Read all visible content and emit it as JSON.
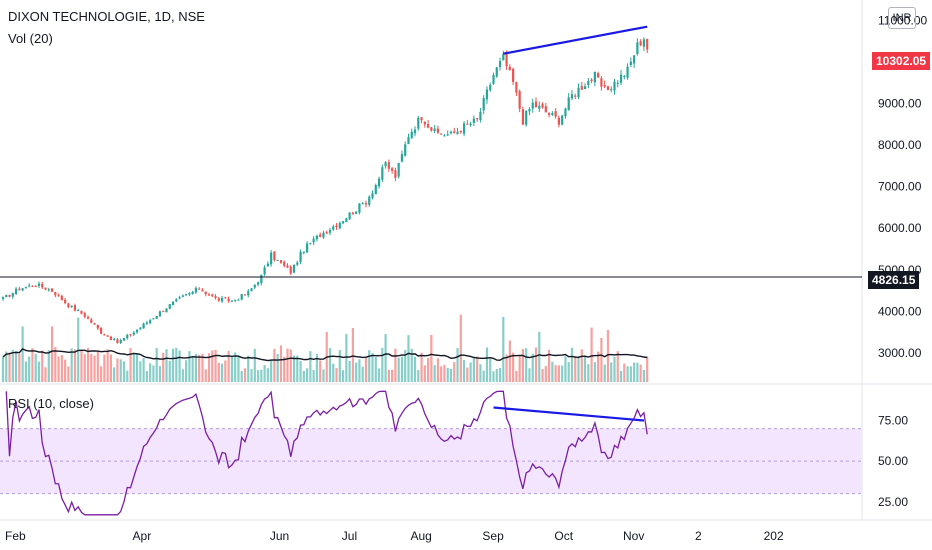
{
  "legend": {
    "title": "DIXON TECHNOLOGIE, 1D, NSE",
    "volume": "Vol (20)",
    "rsi": "RSI (10, close)"
  },
  "currency": "INR",
  "tags": {
    "last_price": "10302.05",
    "level": "4826.15"
  },
  "colors": {
    "up": "#26a69a",
    "down": "#ef5350",
    "trendline": "#1a1ae6",
    "rsi_line": "#7b1fa2",
    "rsi_band": "#f3e5fd"
  },
  "chart_data": [
    {
      "type": "candlestick",
      "name": "price",
      "ylim": [
        2300,
        11300
      ],
      "yticks": [
        3000,
        4000,
        5000,
        6000,
        7000,
        8000,
        9000,
        10000,
        11000
      ],
      "ytick_labels": [
        "3000.00",
        "4000.00",
        "5000.00",
        "6000.00",
        "7000.00",
        "8000.00",
        "9000.00",
        "10000.00",
        "11000.00"
      ],
      "x_tick_labels": [
        "Feb",
        "Apr",
        "Jun",
        "Jul",
        "Aug",
        "Sep",
        "Oct",
        "Nov",
        "2",
        "202"
      ],
      "x_tick_index": [
        0,
        39,
        81,
        103,
        124,
        146,
        168,
        189,
        211,
        232
      ],
      "horizontal_level": 4826.15,
      "last_price": 10302.05,
      "trendline": {
        "from": {
          "index": 153,
          "value": 10200
        },
        "to": {
          "index": 197,
          "value": 10850
        }
      },
      "closes_anchor": [
        [
          0,
          4300
        ],
        [
          5,
          4550
        ],
        [
          10,
          4650
        ],
        [
          15,
          4500
        ],
        [
          20,
          4150
        ],
        [
          25,
          3900
        ],
        [
          30,
          3500
        ],
        [
          35,
          3250
        ],
        [
          40,
          3500
        ],
        [
          45,
          3800
        ],
        [
          50,
          4100
        ],
        [
          55,
          4350
        ],
        [
          60,
          4550
        ],
        [
          65,
          4300
        ],
        [
          70,
          4250
        ],
        [
          75,
          4450
        ],
        [
          79,
          4850
        ],
        [
          82,
          5350
        ],
        [
          85,
          5150
        ],
        [
          88,
          4950
        ],
        [
          92,
          5500
        ],
        [
          97,
          5850
        ],
        [
          102,
          6100
        ],
        [
          107,
          6400
        ],
        [
          111,
          6650
        ],
        [
          114,
          7050
        ],
        [
          117,
          7550
        ],
        [
          120,
          7250
        ],
        [
          124,
          8250
        ],
        [
          128,
          8700
        ],
        [
          132,
          8300
        ],
        [
          137,
          8250
        ],
        [
          141,
          8450
        ],
        [
          145,
          8600
        ],
        [
          150,
          9700
        ],
        [
          153,
          10100
        ],
        [
          156,
          9500
        ],
        [
          159,
          8600
        ],
        [
          162,
          9000
        ],
        [
          166,
          8800
        ],
        [
          170,
          8600
        ],
        [
          174,
          9200
        ],
        [
          178,
          9500
        ],
        [
          181,
          9650
        ],
        [
          184,
          9300
        ],
        [
          187,
          9500
        ],
        [
          191,
          9800
        ],
        [
          194,
          10400
        ],
        [
          196,
          10600
        ],
        [
          197,
          10302
        ]
      ]
    },
    {
      "type": "bar",
      "name": "volume",
      "ma_length": 20,
      "note": "volume bars colored by candle direction with moving average line"
    },
    {
      "type": "line",
      "name": "rsi",
      "ylim": [
        15,
        95
      ],
      "yticks": [
        25,
        50,
        75
      ],
      "ytick_labels": [
        "25.00",
        "50.00",
        "75.00"
      ],
      "band": [
        30,
        70
      ],
      "trendline": {
        "from": {
          "index": 150,
          "value": 83
        },
        "to": {
          "index": 196,
          "value": 75
        }
      }
    }
  ]
}
